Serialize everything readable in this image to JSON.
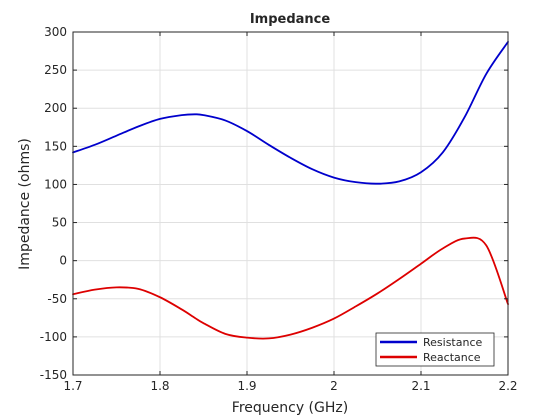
{
  "chart_data": {
    "type": "line",
    "title": "Impedance",
    "xlabel": "Frequency (GHz)",
    "ylabel": "Impedance (ohms)",
    "xlim": [
      1.7,
      2.2
    ],
    "ylim": [
      -150,
      300
    ],
    "xticks": [
      "1.7",
      "1.8",
      "1.9",
      "2",
      "2.1",
      "2.2"
    ],
    "yticks": [
      "300",
      "250",
      "200",
      "150",
      "100",
      "50",
      "0",
      "-50",
      "-100",
      "-150"
    ],
    "grid": true,
    "legend_position": "bottom-right",
    "x": [
      1.7,
      1.725,
      1.75,
      1.775,
      1.8,
      1.825,
      1.84,
      1.85,
      1.875,
      1.9,
      1.925,
      1.95,
      1.975,
      2.0,
      2.025,
      2.05,
      2.075,
      2.1,
      2.125,
      2.15,
      2.175,
      2.2
    ],
    "series": [
      {
        "name": "Resistance",
        "color": "#0000cc",
        "values": [
          142,
          152,
          164,
          176,
          186,
          191,
          192,
          191,
          184,
          170,
          152,
          135,
          120,
          109,
          103,
          101,
          104,
          116,
          142,
          188,
          245,
          287
        ]
      },
      {
        "name": "Reactance",
        "color": "#dd0000",
        "values": [
          -44,
          -38,
          -35,
          -37,
          -48,
          -64,
          -75,
          -82,
          -96,
          -101,
          -102,
          -97,
          -88,
          -76,
          -60,
          -43,
          -24,
          -4,
          16,
          29,
          20,
          -57
        ]
      }
    ]
  }
}
